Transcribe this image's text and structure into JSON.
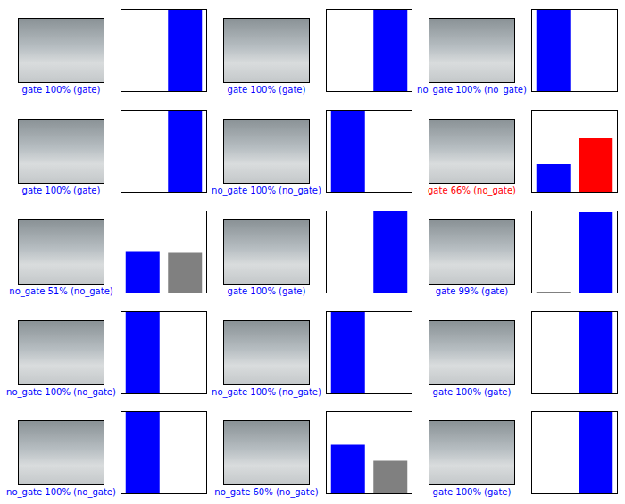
{
  "chart_data": [
    {
      "type": "bar",
      "xlabel": "gate 100% (gate)",
      "categories": [
        null,
        null
      ],
      "values": [
        0,
        100
      ],
      "colors": [
        "#808080",
        "#0000ff"
      ],
      "ylim": [
        0,
        100
      ],
      "yticks": [],
      "tick_labels": false
    },
    {
      "type": "bar",
      "xlabel": "gate 100% (gate)",
      "categories": [
        null,
        null
      ],
      "values": [
        0,
        100
      ],
      "colors": [
        "#808080",
        "#0000ff"
      ],
      "ylim": [
        0,
        100
      ],
      "yticks": [],
      "tick_labels": false
    },
    {
      "type": "bar",
      "xlabel": "no_gate 100% (no_gate)",
      "categories": [
        null,
        null
      ],
      "values": [
        100,
        0
      ],
      "colors": [
        "#0000ff",
        "#808080"
      ],
      "ylim": [
        0,
        100
      ],
      "yticks": [],
      "tick_labels": false
    },
    {
      "type": "bar",
      "xlabel": "gate 100% (gate)",
      "categories": [
        null,
        null
      ],
      "values": [
        0,
        100
      ],
      "colors": [
        "#808080",
        "#0000ff"
      ],
      "ylim": [
        0,
        100
      ],
      "yticks": [],
      "tick_labels": false
    },
    {
      "type": "bar",
      "xlabel": "no_gate 100% (no_gate)",
      "categories": [
        null,
        null
      ],
      "values": [
        100,
        0
      ],
      "colors": [
        "#0000ff",
        "#808080"
      ],
      "ylim": [
        0,
        100
      ],
      "yticks": [],
      "tick_labels": false
    },
    {
      "type": "bar",
      "xlabel": "gate 66% (no_gate)",
      "categories": [
        null,
        null
      ],
      "values": [
        34,
        66
      ],
      "colors": [
        "#0000ff",
        "#ff0000"
      ],
      "ylim": [
        0,
        100
      ],
      "yticks": [],
      "tick_labels": false
    },
    {
      "type": "bar",
      "xlabel": "no_gate 51% (no_gate)",
      "categories": [
        null,
        null
      ],
      "values": [
        51,
        49
      ],
      "colors": [
        "#0000ff",
        "#808080"
      ],
      "ylim": [
        0,
        100
      ],
      "yticks": [],
      "tick_labels": false
    },
    {
      "type": "bar",
      "xlabel": "gate 100% (gate)",
      "categories": [
        null,
        null
      ],
      "values": [
        0,
        100
      ],
      "colors": [
        "#808080",
        "#0000ff"
      ],
      "ylim": [
        0,
        100
      ],
      "yticks": [],
      "tick_labels": false
    },
    {
      "type": "bar",
      "xlabel": "gate 99% (gate)",
      "categories": [
        null,
        null
      ],
      "values": [
        1,
        99
      ],
      "colors": [
        "#808080",
        "#0000ff"
      ],
      "ylim": [
        0,
        100
      ],
      "yticks": [],
      "tick_labels": false
    },
    {
      "type": "bar",
      "xlabel": "no_gate 100% (no_gate)",
      "categories": [
        null,
        null
      ],
      "values": [
        100,
        0
      ],
      "colors": [
        "#0000ff",
        "#808080"
      ],
      "ylim": [
        0,
        100
      ],
      "yticks": [],
      "tick_labels": false
    },
    {
      "type": "bar",
      "xlabel": "no_gate 100% (no_gate)",
      "categories": [
        null,
        null
      ],
      "values": [
        100,
        0
      ],
      "colors": [
        "#0000ff",
        "#808080"
      ],
      "ylim": [
        0,
        100
      ],
      "yticks": [],
      "tick_labels": false
    },
    {
      "type": "bar",
      "xlabel": "gate 100% (gate)",
      "categories": [
        null,
        null
      ],
      "values": [
        0,
        100
      ],
      "colors": [
        "#808080",
        "#0000ff"
      ],
      "ylim": [
        0,
        100
      ],
      "yticks": [],
      "tick_labels": false
    },
    {
      "type": "bar",
      "xlabel": "no_gate 100% (no_gate)",
      "categories": [
        null,
        null
      ],
      "values": [
        100,
        0
      ],
      "colors": [
        "#0000ff",
        "#808080"
      ],
      "ylim": [
        0,
        100
      ],
      "yticks": [],
      "tick_labels": false
    },
    {
      "type": "bar",
      "xlabel": "no_gate 60% (no_gate)",
      "categories": [
        null,
        null
      ],
      "values": [
        60,
        40
      ],
      "colors": [
        "#0000ff",
        "#808080"
      ],
      "ylim": [
        0,
        100
      ],
      "yticks": [],
      "tick_labels": false
    },
    {
      "type": "bar",
      "xlabel": "gate 100% (gate)",
      "categories": [
        null,
        null
      ],
      "values": [
        0,
        100
      ],
      "colors": [
        "#808080",
        "#0000ff"
      ],
      "ylim": [
        0,
        100
      ],
      "yticks": [],
      "tick_labels": false
    }
  ]
}
